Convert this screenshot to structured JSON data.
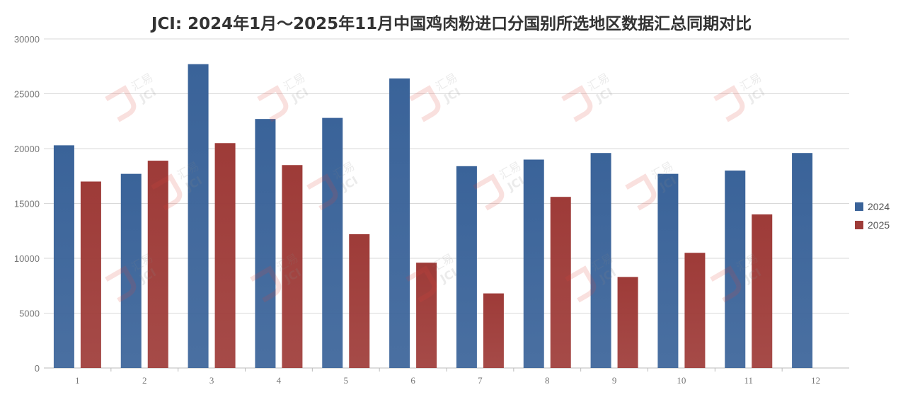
{
  "chart_data": {
    "type": "bar",
    "title": "JCI: 2024年1月～2025年11月中国鸡肉粉进口分国别所选地区数据汇总同期对比",
    "xlabel": "",
    "ylabel": "",
    "categories": [
      "1",
      "2",
      "3",
      "4",
      "5",
      "6",
      "7",
      "8",
      "9",
      "10",
      "11",
      "12"
    ],
    "series": [
      {
        "name": "2024",
        "color": "#3a6399",
        "values": [
          20300,
          17700,
          27700,
          22700,
          22800,
          26400,
          18400,
          19000,
          19600,
          17700,
          18000,
          19600
        ]
      },
      {
        "name": "2025",
        "color": "#9e3b38",
        "values": [
          17000,
          18900,
          20500,
          18500,
          12200,
          9600,
          6800,
          15600,
          8300,
          10500,
          14000,
          null
        ]
      }
    ],
    "ylim": [
      0,
      30000
    ],
    "yticks": [
      0,
      5000,
      10000,
      15000,
      20000,
      25000,
      30000
    ],
    "grid": true,
    "legend_position": "right"
  },
  "watermark": {
    "text": "汇易",
    "subtext": "JCI"
  }
}
